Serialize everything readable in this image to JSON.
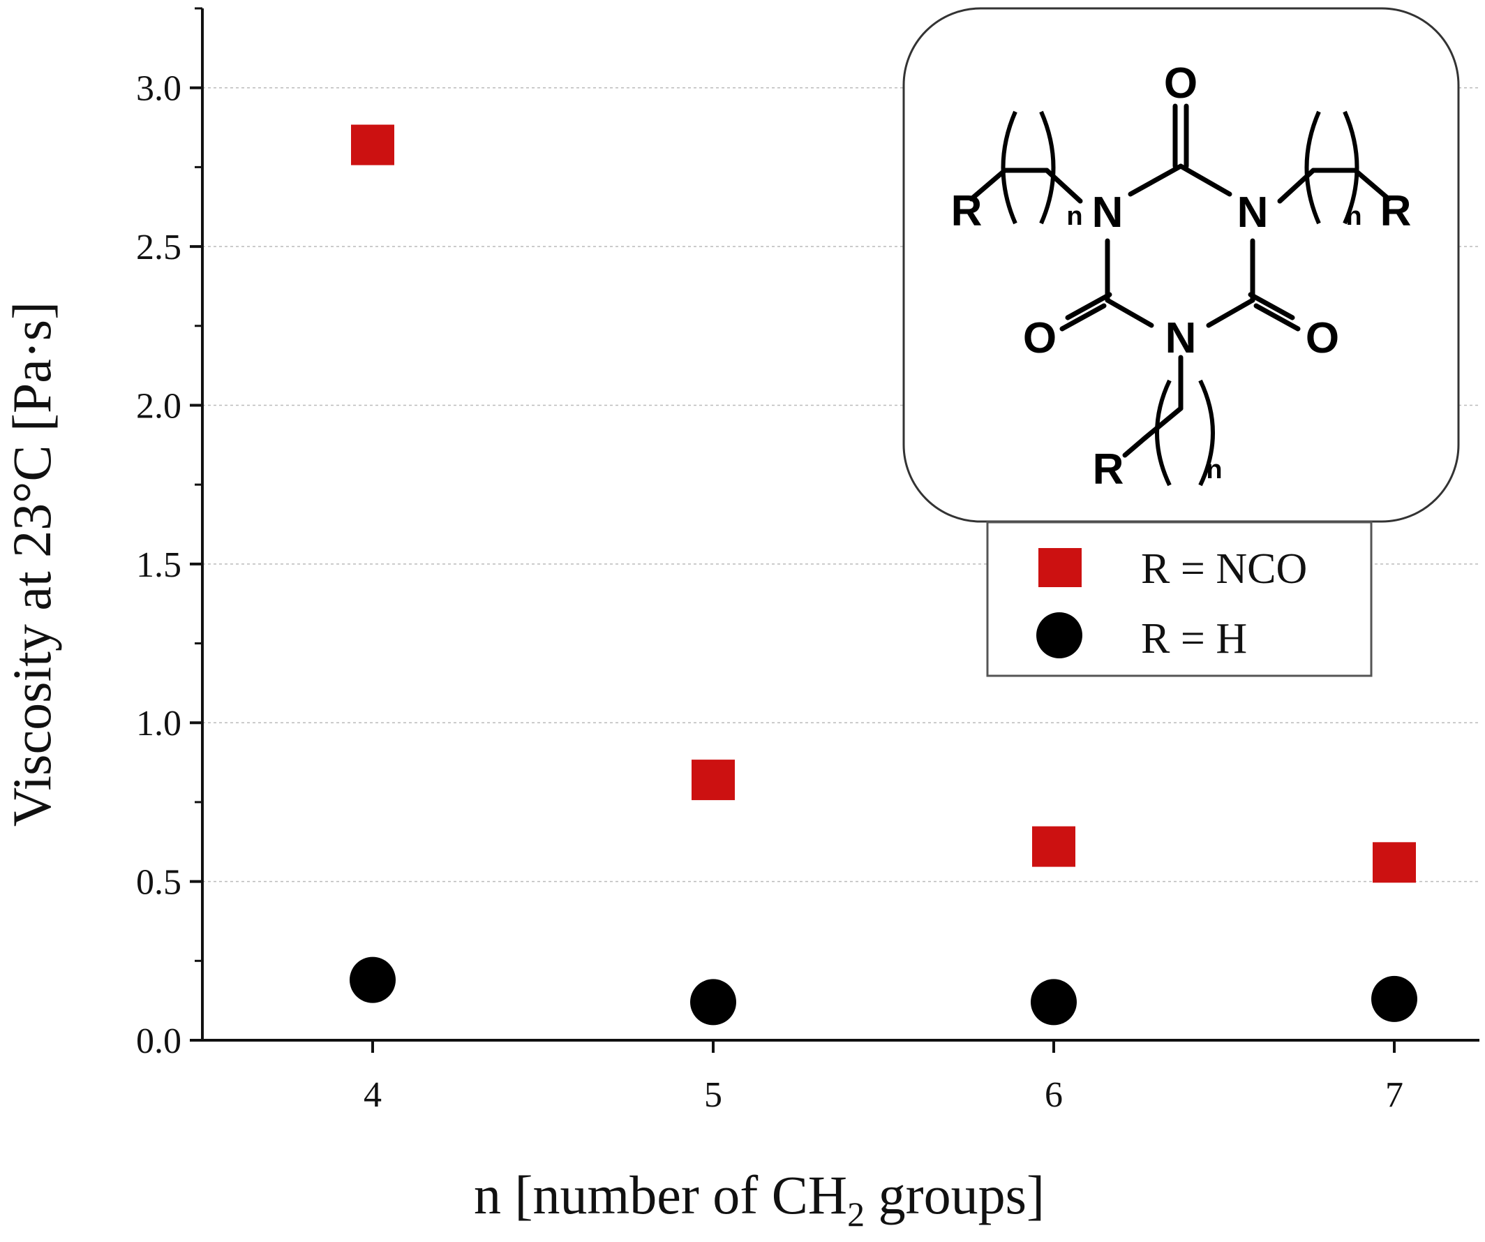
{
  "chart_data": {
    "type": "scatter",
    "title": "",
    "xlabel_main": "n [number of CH",
    "xlabel_sub": "2",
    "xlabel_end": " groups]",
    "ylabel": "Viscosity at 23°C [Pa·s]",
    "x_ticks": [
      4,
      5,
      6,
      7
    ],
    "x_tick_labels": [
      "4",
      "5",
      "6",
      "7"
    ],
    "xlim": [
      3.5,
      7.25
    ],
    "y_ticks": [
      0.0,
      0.5,
      1.0,
      1.5,
      2.0,
      2.5,
      3.0
    ],
    "y_tick_labels": [
      "0.0",
      "0.5",
      "1.0",
      "1.5",
      "2.0",
      "2.5",
      "3.0"
    ],
    "ylim": [
      0.0,
      3.25
    ],
    "grid": "horizontal-dotted",
    "legend_position": "top-right",
    "series": [
      {
        "name": "R = NCO",
        "marker": "square",
        "color": "#cc1111",
        "x": [
          4,
          5,
          6,
          7
        ],
        "y": [
          2.82,
          0.82,
          0.61,
          0.56
        ]
      },
      {
        "name": "R = H",
        "marker": "circle",
        "color": "#000000",
        "x": [
          4,
          5,
          6,
          7
        ],
        "y": [
          0.19,
          0.12,
          0.12,
          0.13
        ]
      }
    ]
  },
  "inset": {
    "atoms": {
      "O_top": "O",
      "O_left": "O",
      "O_right": "O",
      "N_left": "N",
      "N_right": "N",
      "N_bottom": "N",
      "R_left": "R",
      "R_right": "R",
      "R_bottom": "R",
      "n_left": "n",
      "n_right": "n",
      "n_bottom": "n"
    }
  }
}
